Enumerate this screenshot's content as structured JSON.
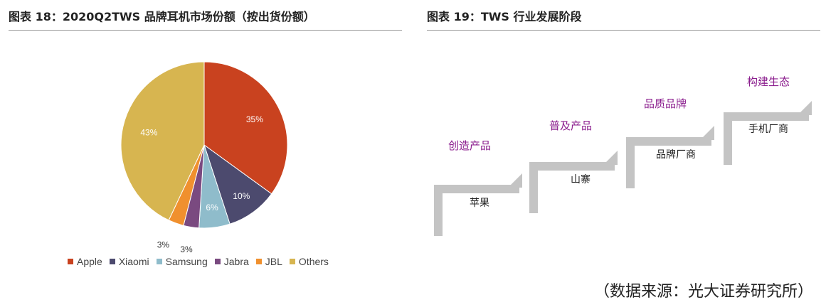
{
  "left_panel": {
    "title": "图表 18：2020Q2TWS 品牌耳机市场份额（按出货份额）"
  },
  "right_panel": {
    "title": "图表 19：TWS 行业发展阶段",
    "steps": [
      {
        "stage": "创造产品",
        "example": "苹果"
      },
      {
        "stage": "普及产品",
        "example": "山寨"
      },
      {
        "stage": "品质品牌",
        "example": "品牌厂商"
      },
      {
        "stage": "构建生态",
        "example": "手机厂商"
      }
    ],
    "stage_color": "#8b1e8e",
    "step_color": "#c4c4c4"
  },
  "source": "（数据来源：光大证券研究所）",
  "chart_data": {
    "type": "pie",
    "categories": [
      "Apple",
      "Xiaomi",
      "Samsung",
      "Jabra",
      "JBL",
      "Others"
    ],
    "values": [
      35,
      10,
      6,
      3,
      3,
      43
    ],
    "labels": [
      "35%",
      "10%",
      "6%",
      "3%",
      "3%",
      "43%"
    ],
    "colors": [
      "#c9421f",
      "#4c4a6e",
      "#8fbccb",
      "#7a4a80",
      "#f0902e",
      "#d7b550"
    ],
    "legend_position": "bottom"
  }
}
